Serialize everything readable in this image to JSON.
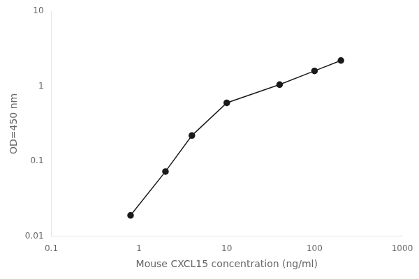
{
  "chart_data": {
    "type": "line",
    "x": [
      0.8,
      2.0,
      4.0,
      10.0,
      40.0,
      100.0,
      200.0
    ],
    "values": [
      0.019,
      0.073,
      0.22,
      0.6,
      1.05,
      1.6,
      2.2
    ],
    "xlabel": "Mouse CXCL15 concentration (ng/ml)",
    "ylabel": "OD=450 nm",
    "xlim": [
      0.1,
      1000
    ],
    "ylim": [
      0.01,
      10
    ],
    "xticks": [
      0.1,
      1,
      10,
      100,
      1000
    ],
    "yticks": [
      0.01,
      0.1,
      1,
      10
    ],
    "log": true,
    "grid": false,
    "color": "#1a1a1a",
    "marker": "circle",
    "line_style": "solid"
  }
}
